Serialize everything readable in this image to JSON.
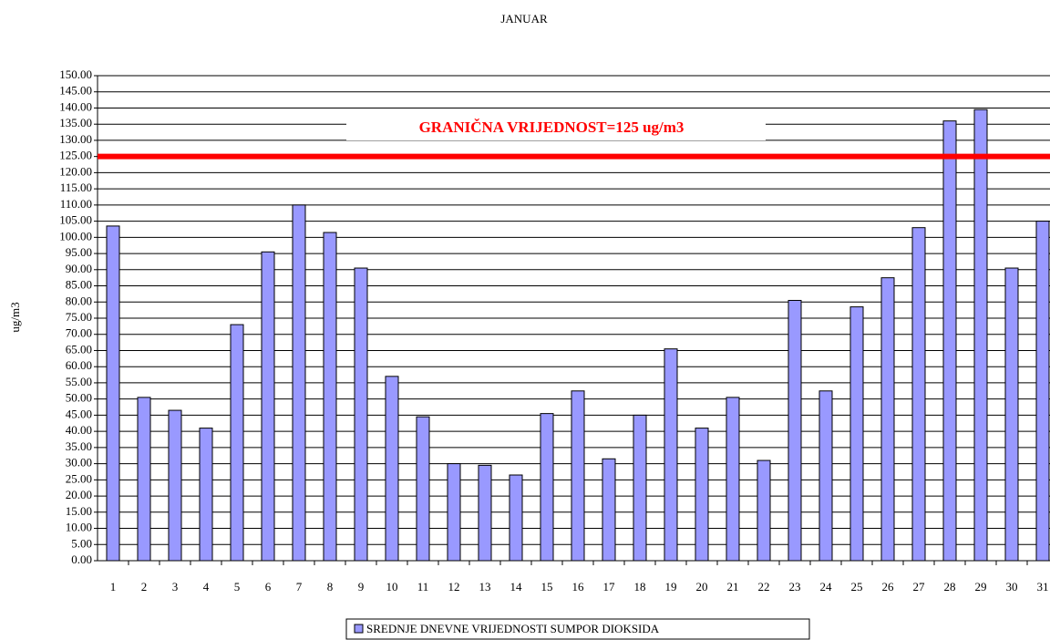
{
  "chart_data": {
    "type": "bar",
    "title": "JANUAR",
    "y_label": "ug/m3",
    "categories": [
      "1",
      "2",
      "3",
      "4",
      "5",
      "6",
      "7",
      "8",
      "9",
      "10",
      "11",
      "12",
      "13",
      "14",
      "15",
      "16",
      "17",
      "18",
      "19",
      "20",
      "21",
      "22",
      "23",
      "24",
      "25",
      "26",
      "27",
      "28",
      "29",
      "30",
      "31"
    ],
    "series": [
      {
        "name": "SREDNJE DNEVNE VRIJEDNOSTI SUMPOR DIOKSIDA",
        "color": "#9999ff",
        "values": [
          103.5,
          50.5,
          46.5,
          41,
          73,
          95.5,
          110,
          101.5,
          90.5,
          57,
          44.5,
          30,
          29.5,
          26.5,
          45.5,
          52.5,
          31.5,
          45,
          65.5,
          41,
          50.5,
          31,
          80.5,
          52.5,
          78.5,
          87.5,
          103,
          136,
          139.5,
          90.5,
          105
        ]
      }
    ],
    "threshold": {
      "value": 125,
      "label": "GRANIČNA VRIJEDNOST=125 ug/m3",
      "color": "#ff0000"
    },
    "ylim": [
      0,
      150
    ],
    "yticks": [
      {
        "value": 0,
        "label": "0.00"
      },
      {
        "value": 5,
        "label": "5.00"
      },
      {
        "value": 10,
        "label": "10.00"
      },
      {
        "value": 15,
        "label": "15.00"
      },
      {
        "value": 20,
        "label": "20.00"
      },
      {
        "value": 25,
        "label": "25.00"
      },
      {
        "value": 30,
        "label": "30.00"
      },
      {
        "value": 35,
        "label": "35.00"
      },
      {
        "value": 40,
        "label": "40.00"
      },
      {
        "value": 45,
        "label": "45.00"
      },
      {
        "value": 50,
        "label": "50.00"
      },
      {
        "value": 55,
        "label": "55.00"
      },
      {
        "value": 60,
        "label": "60.00"
      },
      {
        "value": 65,
        "label": "65.00"
      },
      {
        "value": 70,
        "label": "70.00"
      },
      {
        "value": 75,
        "label": "75.00"
      },
      {
        "value": 80,
        "label": "80.00"
      },
      {
        "value": 85,
        "label": "85.00"
      },
      {
        "value": 90,
        "label": "90.00"
      },
      {
        "value": 95,
        "label": "95.00"
      },
      {
        "value": 100,
        "label": "100.00"
      },
      {
        "value": 105,
        "label": "105.00"
      },
      {
        "value": 110,
        "label": "110.00"
      },
      {
        "value": 115,
        "label": "115.00"
      },
      {
        "value": 120,
        "label": "120.00"
      },
      {
        "value": 125,
        "label": "125.00"
      },
      {
        "value": 130,
        "label": "130.00"
      },
      {
        "value": 135,
        "label": "135.00"
      },
      {
        "value": 140,
        "label": "140.00"
      },
      {
        "value": 145,
        "label": "145.00"
      },
      {
        "value": 150,
        "label": "150.00"
      }
    ],
    "grid": true,
    "legend": "bottom"
  }
}
